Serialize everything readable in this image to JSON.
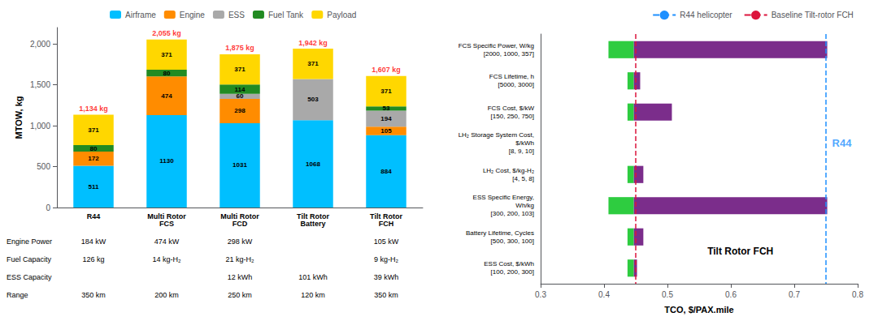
{
  "chart_data": [
    {
      "type": "bar",
      "stacked": true,
      "categories": [
        "R44",
        "Multi Rotor\nFCS",
        "Multi Rotor\nFCD",
        "Tilt Rotor\nBattery",
        "Tilt Rotor\nFCH"
      ],
      "series": [
        {
          "name": "Airframe",
          "color": "#00BFFF",
          "values": [
            511,
            1130,
            1031,
            1068,
            884
          ]
        },
        {
          "name": "Engine",
          "color": "#FF8C00",
          "values": [
            172,
            474,
            298,
            0,
            105
          ]
        },
        {
          "name": "ESS",
          "color": "#A9A9A9",
          "values": [
            0,
            0,
            60,
            503,
            194
          ]
        },
        {
          "name": "Fuel Tank",
          "color": "#228B22",
          "values": [
            80,
            80,
            114,
            0,
            53
          ]
        },
        {
          "name": "Payload",
          "color": "#FFD700",
          "values": [
            371,
            371,
            371,
            371,
            371
          ]
        }
      ],
      "data_labels": true,
      "totals": {
        "values": [
          1134,
          2055,
          1875,
          1942,
          1607
        ],
        "value_labels": [
          "1,134 kg",
          "2,055 kg",
          "1,875 kg",
          "1,942 kg",
          "1,607 kg"
        ],
        "color": "red"
      },
      "ylabel": "MTOW, kg",
      "ylim": [
        0,
        2200
      ],
      "yticks": [
        0,
        500,
        1000,
        1500,
        2000
      ],
      "grid": false,
      "legend": "top",
      "table": {
        "rows": [
          "Engine Power",
          "Fuel Capacity",
          "ESS Capacity",
          "Range"
        ],
        "cells": [
          [
            "184 kW",
            "474 kW",
            "298 kW",
            null,
            "105 kW"
          ],
          [
            "126 kg",
            "14 kg-H₂",
            "21 kg-H₂",
            null,
            "9 kg-H₂"
          ],
          [
            null,
            null,
            "12 kWh",
            "101 kWh",
            "39 kWh"
          ],
          [
            "350 km",
            "200 km",
            "250 km",
            "120 km",
            "350 km"
          ]
        ]
      }
    },
    {
      "type": "bar",
      "orientation": "horizontal",
      "categories": [
        "FCS Specific Power, W/kg\n[2000, 1000, 357]",
        "FCS Lifetime, h\n[5000, 3000]",
        "FCS Cost, $/kW\n[150, 250, 750]",
        "LH₂ Storage System Cost,\n$/kWh\n[8, 9, 10]",
        "LH₂ Cost, $/kg-H₂\n[4, 5, 8]",
        "ESS Specific Energy,\nWh/kg\n[300, 200, 103]",
        "Battery Lifetime, Cycles\n[500, 300, 100]",
        "ESS Cost, $/kWh\n[100, 200, 300]"
      ],
      "series": [
        {
          "color": "#2ECC40",
          "from": [
            0.407,
            0.437,
            0.437,
            0.447,
            0.437,
            0.407,
            0.437,
            0.437
          ],
          "to": [
            0.447,
            0.447,
            0.447,
            0.447,
            0.447,
            0.447,
            0.447,
            0.447
          ]
        },
        {
          "color": "#7B2D8B",
          "from": [
            0.447,
            0.447,
            0.447,
            0.447,
            0.447,
            0.447,
            0.447,
            0.447
          ],
          "to": [
            0.752,
            0.457,
            0.507,
            0.447,
            0.462,
            0.752,
            0.462,
            0.452
          ]
        }
      ],
      "lines": [
        {
          "name": "R44 helicopter",
          "x": 0.752,
          "color": "#1E90FF",
          "line_style": "dashed"
        },
        {
          "name": "Baseline Tilt-rotor FCH",
          "x": 0.447,
          "color": "#DC143C",
          "line_style": "dashed"
        }
      ],
      "annotations": [
        {
          "text": "R44",
          "x": 0.752,
          "color": "#1E90FF"
        },
        {
          "text": "Tilt Rotor FCH",
          "color": "black"
        }
      ],
      "xlabel": "TCO, $/PAX.mile",
      "xlim": [
        0.3,
        0.8
      ],
      "xticks": [
        0.3,
        0.4,
        0.5,
        0.6,
        0.7,
        0.8
      ],
      "grid": false,
      "legend": "upper right"
    }
  ]
}
